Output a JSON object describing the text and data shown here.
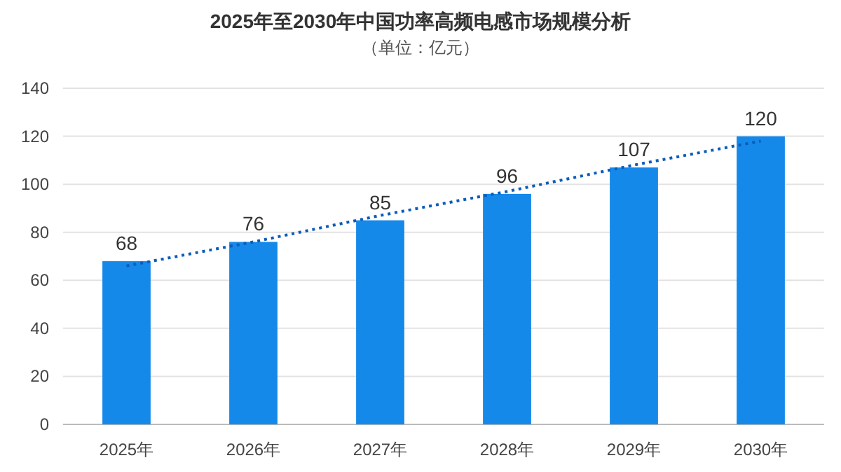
{
  "chart_data": {
    "type": "bar",
    "title": "2025年至2030年中国功率高频电感市场规模分析",
    "subtitle": "（单位：亿元）",
    "categories": [
      "2025年",
      "2026年",
      "2027年",
      "2028年",
      "2029年",
      "2030年"
    ],
    "series": [
      {
        "color": "#1589ea",
        "values": [
          68,
          76,
          85,
          96,
          107,
          120
        ],
        "value_labels": [
          "68",
          "76",
          "85",
          "96",
          "107",
          "120"
        ]
      },
      {
        "type": "line",
        "color": "#0b5cb8",
        "line_style": "dotted",
        "x": [
          "2025年",
          "2026年",
          "2027年",
          "2028年",
          "2029年",
          "2030年"
        ],
        "values": [
          66,
          76,
          87,
          97,
          108,
          118
        ]
      }
    ],
    "ylim": [
      0,
      140
    ],
    "yticks": [
      0,
      20,
      40,
      60,
      80,
      100,
      120,
      140
    ],
    "grid": "y"
  }
}
